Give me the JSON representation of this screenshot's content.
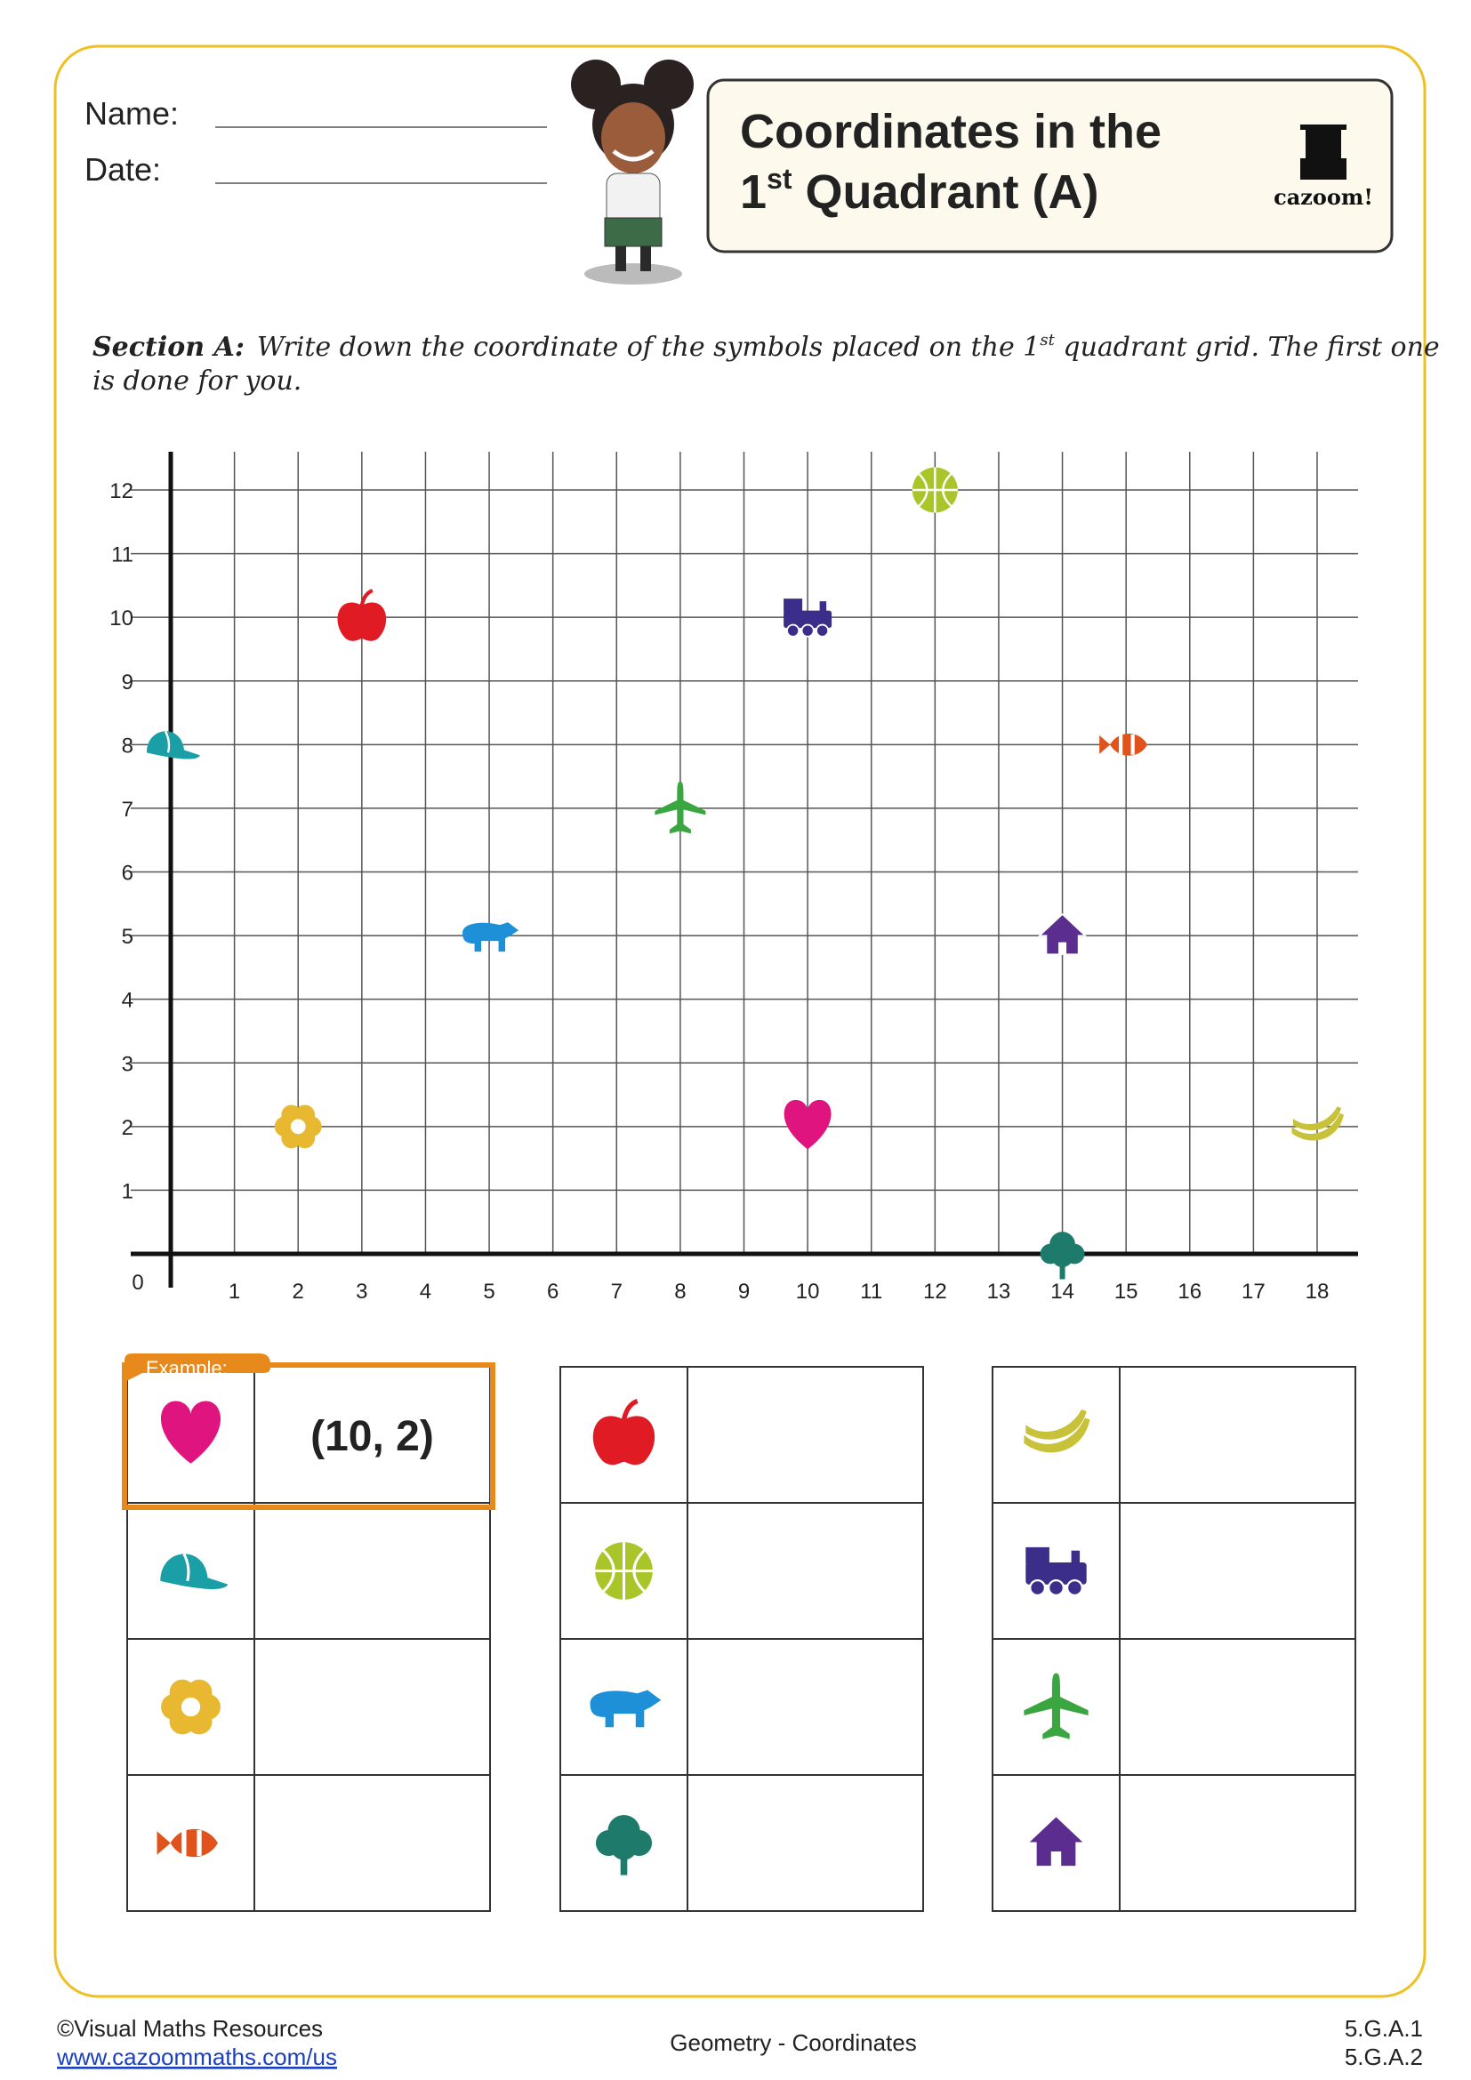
{
  "header": {
    "name_label": "Name:",
    "date_label": "Date:",
    "title_line1": "Coordinates in the",
    "title_line2": [
      "1",
      "st",
      " Quadrant (A)"
    ],
    "logo_text": "cazoom!"
  },
  "section": {
    "label": "Section A:",
    "instruction": [
      "Write down the coordinate of the symbols placed on the 1",
      "st",
      " quadrant grid. The first one",
      "is done for you."
    ]
  },
  "grid": {
    "origin_label": "0",
    "xlim": [
      0,
      18
    ],
    "ylim": [
      0,
      12
    ],
    "xticks": [
      1,
      2,
      3,
      4,
      5,
      6,
      7,
      8,
      9,
      10,
      11,
      12,
      13,
      14,
      15,
      16,
      17,
      18
    ],
    "yticks": [
      1,
      2,
      3,
      4,
      5,
      6,
      7,
      8,
      9,
      10,
      11,
      12
    ],
    "symbols": [
      {
        "x": 10,
        "y": 2,
        "color": "#e0147e"
      },
      {
        "x": 0,
        "y": 8,
        "color": "#1a9fa6"
      },
      {
        "x": 2,
        "y": 2,
        "color": "#e8b830"
      },
      {
        "x": 15,
        "y": 8,
        "color": "#e0541b"
      },
      {
        "x": 3,
        "y": 10,
        "color": "#e01b24"
      },
      {
        "x": 12,
        "y": 12,
        "color": "#a8c62a"
      },
      {
        "x": 5,
        "y": 5,
        "color": "#1e90d8"
      },
      {
        "x": 14,
        "y": 0,
        "color": "#1e7a6a"
      },
      {
        "x": 18,
        "y": 2,
        "color": "#c8c23a"
      },
      {
        "x": 10,
        "y": 10,
        "color": "#3b2d8a"
      },
      {
        "x": 8,
        "y": 7,
        "color": "#3aa640"
      },
      {
        "x": 14,
        "y": 5,
        "color": "#5a2d8e"
      }
    ]
  },
  "example": {
    "label": "Example:",
    "answer": "(10, 2)"
  },
  "footer": {
    "copyright": "©Visual Maths Resources",
    "url": "www.cazoommaths.com/us",
    "topic": "Geometry - Coordinates",
    "standard1": "5.G.A.1",
    "standard2": "5.G.A.2"
  }
}
